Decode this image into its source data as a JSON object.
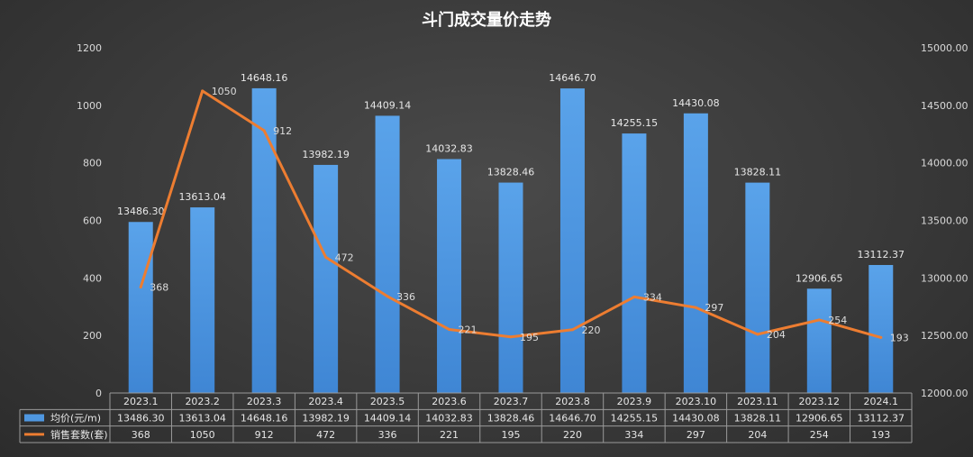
{
  "chart_data": {
    "type": "bar",
    "title": "斗门成交量价走势",
    "categories": [
      "2023.1",
      "2023.2",
      "2023.3",
      "2023.4",
      "2023.5",
      "2023.6",
      "2023.7",
      "2023.8",
      "2023.9",
      "2023.10",
      "2023.11",
      "2023.12",
      "2024.1"
    ],
    "series": [
      {
        "name": "均价(元/m)",
        "type": "bar",
        "axis": "right",
        "color": "#4f97e0",
        "values": [
          13486.3,
          13613.04,
          14648.16,
          13982.19,
          14409.14,
          14032.83,
          13828.46,
          14646.7,
          14255.15,
          14430.08,
          13828.11,
          12906.65,
          13112.37
        ],
        "labels": [
          "13486.30",
          "13613.04",
          "14648.16",
          "13982.19",
          "14409.14",
          "14032.83",
          "13828.46",
          "14646.70",
          "14255.15",
          "14430.08",
          "13828.11",
          "12906.65",
          "13112.37"
        ]
      },
      {
        "name": "销售套数(套)",
        "type": "line",
        "axis": "left",
        "color": "#ed7d31",
        "values": [
          368,
          1050,
          912,
          472,
          336,
          221,
          195,
          220,
          334,
          297,
          204,
          254,
          193
        ],
        "labels": [
          "368",
          "1050",
          "912",
          "472",
          "336",
          "221",
          "195",
          "220",
          "334",
          "297",
          "204",
          "254",
          "193"
        ]
      }
    ],
    "y_left": {
      "ylim": [
        0,
        1200
      ],
      "ticks": [
        "0",
        "200",
        "400",
        "600",
        "800",
        "1000",
        "1200"
      ]
    },
    "y_right": {
      "ylim": [
        12000,
        15000
      ],
      "ticks": [
        "12000.00",
        "12500.00",
        "13000.00",
        "13500.00",
        "14000.00",
        "14500.00",
        "15000.00"
      ]
    },
    "grid": false,
    "legend": "data-table"
  }
}
